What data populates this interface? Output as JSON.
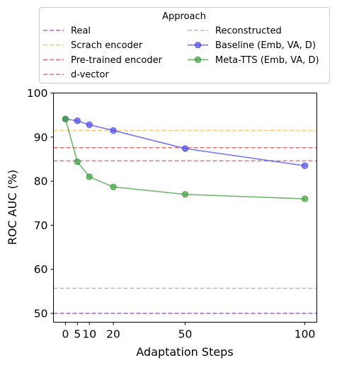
{
  "chart_data": {
    "type": "line",
    "xlabel": "Adaptation Steps",
    "ylabel": "ROC AUC (%)",
    "xlim": [
      -5,
      105
    ],
    "ylim": [
      48,
      100
    ],
    "xticks": [
      0,
      5,
      10,
      20,
      50,
      100
    ],
    "yticks": [
      50,
      60,
      70,
      80,
      90,
      100
    ],
    "grid": false,
    "legend": {
      "title": "Approach",
      "placement": "above plot",
      "columns": 2
    },
    "reference_lines": [
      {
        "name": "Real",
        "value": 50.0,
        "color": "#9b4fc4",
        "style": "dashed"
      },
      {
        "name": "Scrach encoder",
        "value": 91.5,
        "color": "#ffbe56",
        "style": "dashed"
      },
      {
        "name": "Pre-trained encoder",
        "value": 87.6,
        "color": "#e8585a",
        "style": "dashed"
      },
      {
        "name": "d-vector",
        "value": 84.6,
        "color": "#cc6e6e",
        "style": "dashed"
      },
      {
        "name": "Reconstructed",
        "value": 55.7,
        "color": "#b2b2b2",
        "style": "dashed"
      }
    ],
    "series": [
      {
        "name": "Baseline (Emb, VA, D)",
        "color": "#4a4af0",
        "x": [
          0,
          5,
          10,
          20,
          50,
          100
        ],
        "y": [
          94.1,
          93.7,
          92.8,
          91.5,
          87.4,
          83.5
        ]
      },
      {
        "name": "Meta-TTS (Emb, VA, D)",
        "color": "#3d9e3d",
        "x": [
          0,
          5,
          10,
          20,
          50,
          100
        ],
        "y": [
          94.1,
          84.4,
          81.0,
          78.7,
          77.0,
          76.0
        ]
      }
    ]
  }
}
